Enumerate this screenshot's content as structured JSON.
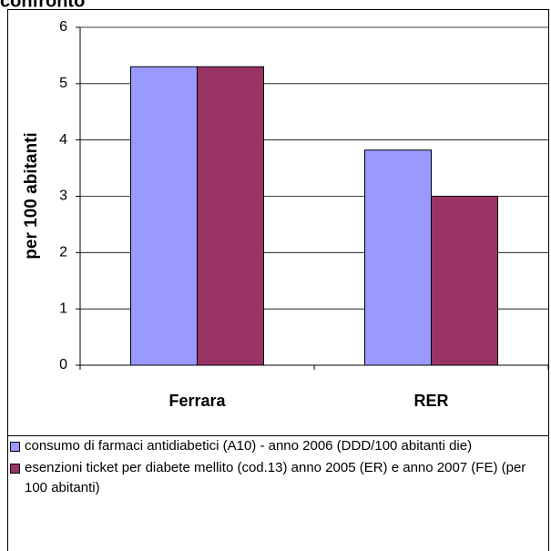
{
  "chart_data": {
    "type": "bar",
    "title": "confronto",
    "ylabel": "per 100 abitanti",
    "categories": [
      "Ferrara",
      "RER"
    ],
    "series": [
      {
        "name": "consumo di farmaci antidiabetici (A10) - anno 2006 (DDD/100 abitanti die)",
        "color": "#9999ff",
        "values": [
          5.3,
          3.82
        ]
      },
      {
        "name": "esenzioni ticket per diabete mellito (cod.13) anno 2005 (ER) e anno 2007 (FE) (per 100 abitanti)",
        "color": "#993366",
        "values": [
          5.3,
          3.0
        ]
      }
    ],
    "ylim": [
      0,
      6
    ],
    "yticks": [
      0,
      1,
      2,
      3,
      4,
      5,
      6
    ],
    "grid": true
  }
}
